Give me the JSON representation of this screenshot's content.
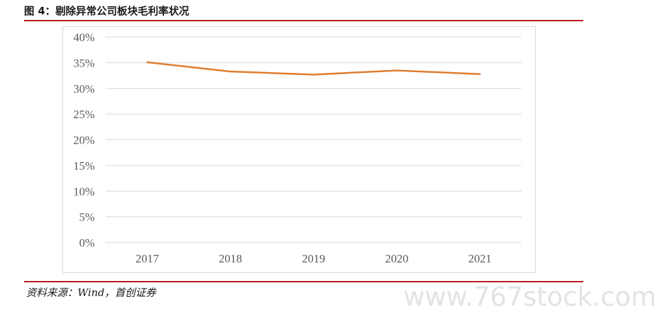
{
  "figure": {
    "title": "图 4：剔除异常公司板块毛利率状况",
    "source": "资料来源：Wind，首创证券"
  },
  "watermark": "www.767stock.com",
  "colors": {
    "line": "#e07b2c",
    "rule": "#b5171c",
    "grid": "#d9d9d9",
    "text": "#595959"
  },
  "chart_data": {
    "type": "line",
    "title": "",
    "xlabel": "",
    "ylabel": "",
    "categories": [
      "2017",
      "2018",
      "2019",
      "2020",
      "2021"
    ],
    "series": [
      {
        "values": [
          0.351,
          0.333,
          0.327,
          0.335,
          0.328
        ]
      }
    ],
    "ylim": [
      0,
      0.4
    ],
    "yticks": [
      0,
      0.05,
      0.1,
      0.15,
      0.2,
      0.25,
      0.3,
      0.35,
      0.4
    ],
    "ytick_labels": [
      "0%",
      "5%",
      "10%",
      "15%",
      "20%",
      "25%",
      "30%",
      "35%",
      "40%"
    ],
    "grid": "horizontal",
    "legend": "none"
  }
}
